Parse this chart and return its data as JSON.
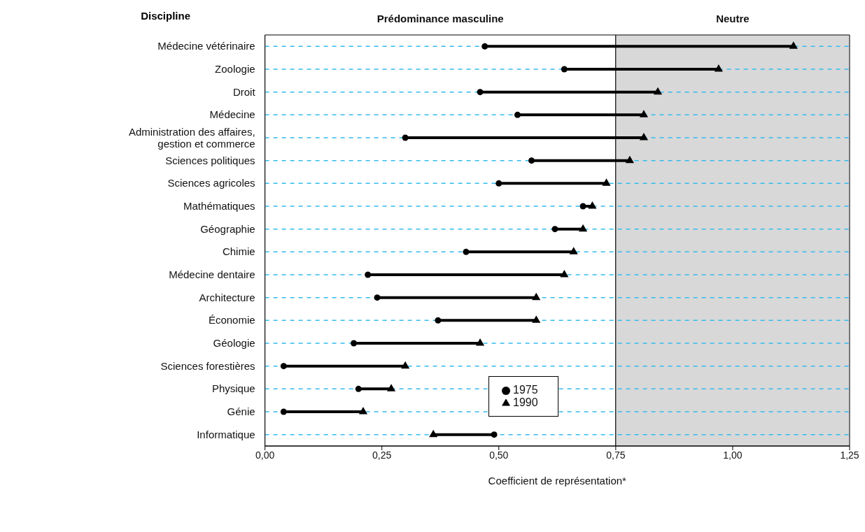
{
  "chart_data": {
    "type": "scatter",
    "orientation": "horizontal",
    "ylabel": "Discipline",
    "xlabel": "Coefficient de représentation*",
    "categories": [
      "Médecine vétérinaire",
      "Zoologie",
      "Droit",
      "Médecine",
      "Administration des affaires, gestion et commerce",
      "Sciences politiques",
      "Sciences agricoles",
      "Mathématiques",
      "Géographie",
      "Chimie",
      "Médecine dentaire",
      "Architecture",
      "Économie",
      "Géologie",
      "Sciences forestières",
      "Physique",
      "Génie",
      "Informatique"
    ],
    "series": [
      {
        "name": "1975",
        "color": "#000000",
        "marker": "circle",
        "values": [
          0.47,
          0.64,
          0.46,
          0.54,
          0.3,
          0.57,
          0.5,
          0.68,
          0.62,
          0.43,
          0.22,
          0.24,
          0.37,
          0.19,
          0.04,
          0.2,
          0.04,
          0.49
        ]
      },
      {
        "name": "1990",
        "color": "#000000",
        "marker": "triangle",
        "values": [
          1.13,
          0.97,
          0.84,
          0.81,
          0.81,
          0.78,
          0.73,
          0.7,
          0.68,
          0.66,
          0.64,
          0.58,
          0.58,
          0.46,
          0.3,
          0.27,
          0.21,
          0.36
        ]
      }
    ],
    "xlim": [
      0,
      1.25
    ],
    "xticks": [
      {
        "value": 0,
        "label": "0,00"
      },
      {
        "value": 0.25,
        "label": "0,25"
      },
      {
        "value": 0.5,
        "label": "0,50"
      },
      {
        "value": 0.75,
        "label": "0,75"
      },
      {
        "value": 1,
        "label": "1,00"
      },
      {
        "value": 1.25,
        "label": "1,25"
      }
    ],
    "bands": [
      {
        "axis": "x",
        "from": 0,
        "to": 0.75,
        "label": "Prédominance masculine",
        "color": "#ffffff"
      },
      {
        "axis": "x",
        "from": 0.75,
        "to": 1.25,
        "label": "Neutre",
        "color": "#d8d8d8"
      }
    ],
    "grid": "y",
    "legend": "bottom"
  }
}
